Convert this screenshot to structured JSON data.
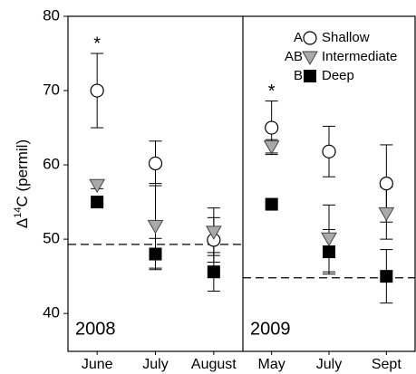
{
  "chart_data": [
    {
      "type": "errorpoint",
      "y_label": {
        "prefix": "Δ",
        "superscript": "14",
        "suffix": "C (permil)"
      },
      "panel_label": "2008",
      "categories": [
        "June",
        "July",
        "August"
      ],
      "ylim": [
        34.9,
        80
      ],
      "yticks": [
        40,
        50,
        60,
        70,
        80
      ],
      "reference_line": 49.3,
      "annotations": [
        {
          "text": "*",
          "category_index": 0,
          "series_index": 0
        }
      ],
      "series": [
        {
          "name": "Shallow",
          "group": "A",
          "marker": "circle",
          "color": "#ffffff",
          "values": [
            70,
            60.2,
            49.9
          ],
          "errors": [
            5,
            3,
            3
          ]
        },
        {
          "name": "Intermediate",
          "group": "AB",
          "marker": "triangle",
          "color": "#aaaaaa",
          "values": [
            57.3,
            51.8,
            51
          ],
          "errors": [
            0.5,
            5.7,
            3.2
          ]
        },
        {
          "name": "Deep",
          "group": "B",
          "marker": "square",
          "color": "#000000",
          "values": [
            55,
            48,
            45.6
          ],
          "errors": [
            0.4,
            2.1,
            2.6
          ]
        }
      ]
    },
    {
      "type": "errorpoint",
      "panel_label": "2009",
      "categories": [
        "May",
        "July",
        "Sept"
      ],
      "ylim": [
        34.9,
        80
      ],
      "reference_line": 44.8,
      "annotations": [
        {
          "text": "*",
          "category_index": 0,
          "series_index": 0
        }
      ],
      "series": [
        {
          "name": "Shallow",
          "group": "A",
          "marker": "circle",
          "color": "#ffffff",
          "values": [
            65,
            61.8,
            57.5
          ],
          "errors": [
            3.6,
            3.4,
            5.2
          ]
        },
        {
          "name": "Intermediate",
          "group": "AB",
          "marker": "triangle",
          "color": "#aaaaaa",
          "values": [
            62.5,
            50.1,
            53.5
          ],
          "errors": [
            0.9,
            4.5,
            3.5
          ]
        },
        {
          "name": "Deep",
          "group": "B",
          "marker": "square",
          "color": "#000000",
          "values": [
            54.7,
            48.3,
            45
          ],
          "errors": [
            0.3,
            3,
            3.6
          ]
        }
      ]
    }
  ]
}
